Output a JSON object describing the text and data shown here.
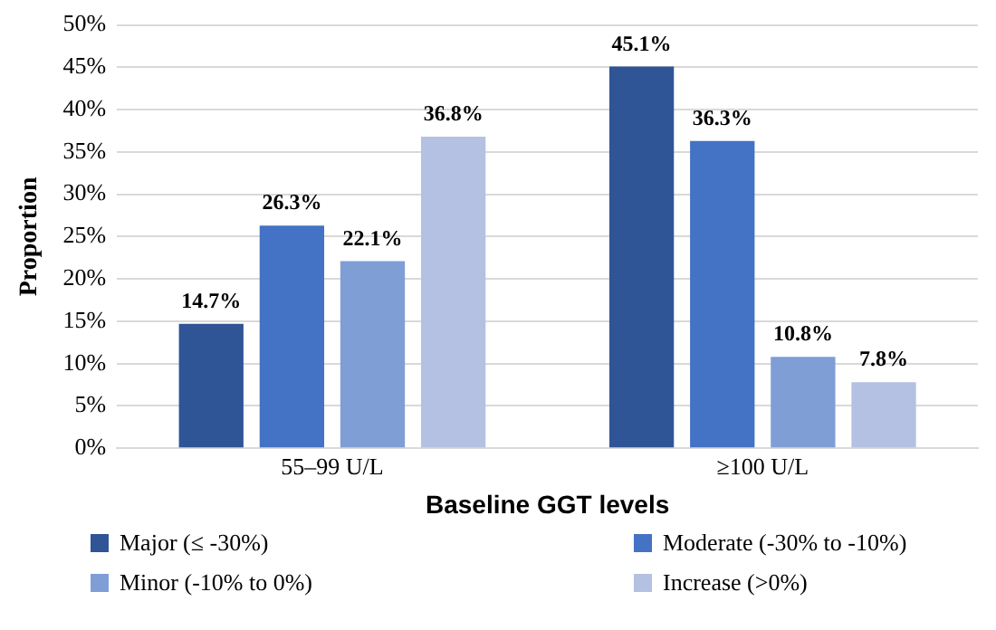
{
  "chart_data": {
    "type": "bar",
    "xlabel": "Baseline GGT levels",
    "ylabel": "Proportion",
    "categories": [
      "55–99 U/L",
      "≥100 U/L"
    ],
    "series": [
      {
        "name": "Major (≤ -30%)",
        "color": "#2f5597",
        "values": [
          14.7,
          45.1
        ],
        "value_labels": [
          "14.7%",
          "45.1%"
        ]
      },
      {
        "name": "Moderate (-30% to -10%)",
        "color": "#4472c4",
        "values": [
          26.3,
          36.3
        ],
        "value_labels": [
          "26.3%",
          "36.3%"
        ]
      },
      {
        "name": "Minor (-10% to 0%)",
        "color": "#7f9ed6",
        "values": [
          22.1,
          10.8
        ],
        "value_labels": [
          "22.1%",
          "10.8%"
        ]
      },
      {
        "name": "Increase (>0%)",
        "color": "#b4c1e2",
        "values": [
          36.8,
          7.8
        ],
        "value_labels": [
          "36.8%",
          "7.8%"
        ]
      }
    ],
    "ylim": [
      0,
      50
    ],
    "yticks": [
      {
        "value": 0,
        "label": "0%"
      },
      {
        "value": 5,
        "label": "5%"
      },
      {
        "value": 10,
        "label": "10%"
      },
      {
        "value": 15,
        "label": "15%"
      },
      {
        "value": 20,
        "label": "20%"
      },
      {
        "value": 25,
        "label": "25%"
      },
      {
        "value": 30,
        "label": "30%"
      },
      {
        "value": 35,
        "label": "35%"
      },
      {
        "value": 40,
        "label": "40%"
      },
      {
        "value": 45,
        "label": "45%"
      },
      {
        "value": 50,
        "label": "50%"
      }
    ],
    "grid": "y",
    "legend": "bottom"
  }
}
